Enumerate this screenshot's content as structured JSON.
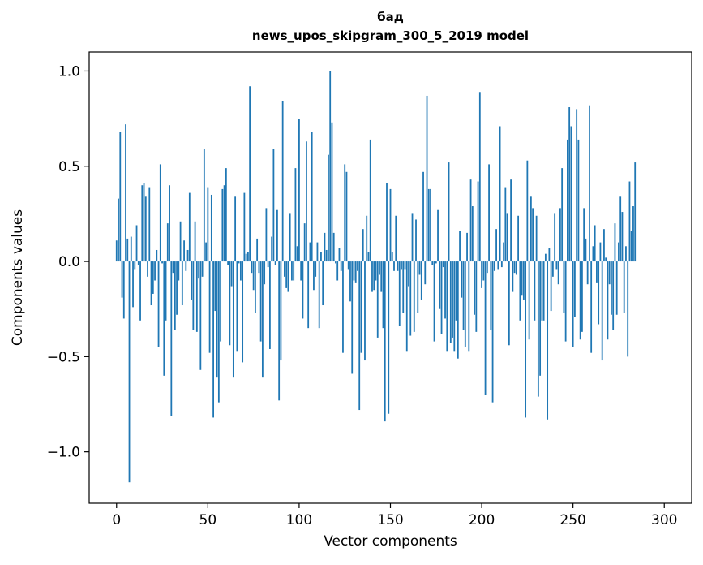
{
  "chart_data": {
    "type": "bar",
    "title": "бад",
    "subtitle": "news_upos_skipgram_300_5_2019 model",
    "xlabel": "Vector components",
    "ylabel": "Components values",
    "xlim": [
      -15,
      315
    ],
    "ylim": [
      -1.27,
      1.1
    ],
    "xticks": [
      0,
      50,
      100,
      150,
      200,
      250,
      300
    ],
    "yticks": [
      1.0,
      0.5,
      0.0,
      -0.5,
      -1.0
    ],
    "ytick_labels": [
      "1.0",
      "0.5",
      "0.0",
      "−0.5",
      "−1.0"
    ],
    "bar_color": "#1f77b4",
    "grid": false,
    "values": [
      0.11,
      0.33,
      0.68,
      -0.19,
      -0.3,
      0.72,
      0.12,
      -1.16,
      0.13,
      -0.24,
      -0.04,
      0.19,
      -0.02,
      -0.31,
      0.4,
      0.41,
      0.34,
      -0.08,
      0.39,
      -0.23,
      -0.17,
      -0.1,
      0.06,
      -0.45,
      0.51,
      -0.01,
      -0.6,
      -0.31,
      0.2,
      0.4,
      -0.81,
      -0.06,
      -0.36,
      -0.28,
      -0.1,
      0.21,
      -0.23,
      0.11,
      -0.05,
      0.06,
      0.36,
      -0.2,
      -0.36,
      0.21,
      -0.37,
      -0.09,
      -0.57,
      -0.08,
      0.59,
      0.1,
      0.39,
      -0.48,
      0.35,
      -0.82,
      -0.26,
      -0.61,
      -0.74,
      -0.42,
      0.38,
      0.4,
      0.49,
      -0.02,
      -0.44,
      -0.13,
      -0.61,
      0.34,
      -0.47,
      -0.01,
      -0.1,
      -0.53,
      0.36,
      0.04,
      0.05,
      0.92,
      -0.06,
      -0.15,
      -0.27,
      0.12,
      -0.06,
      -0.42,
      -0.61,
      -0.12,
      0.28,
      -0.03,
      -0.46,
      0.13,
      0.59,
      -0.02,
      0.27,
      -0.73,
      -0.52,
      0.84,
      -0.08,
      -0.14,
      -0.16,
      0.25,
      -0.1,
      -0.1,
      0.49,
      0.08,
      0.75,
      -0.1,
      -0.3,
      0.2,
      0.63,
      -0.35,
      0.1,
      0.68,
      -0.15,
      -0.08,
      0.1,
      -0.35,
      0.05,
      -0.23,
      0.15,
      0.06,
      0.56,
      1.0,
      0.73,
      0.15,
      -0.01,
      -0.1,
      0.07,
      -0.05,
      -0.48,
      0.51,
      0.47,
      -0.04,
      -0.21,
      -0.59,
      -0.1,
      -0.11,
      -0.05,
      -0.78,
      -0.48,
      0.17,
      -0.52,
      0.24,
      0.05,
      0.64,
      -0.16,
      -0.15,
      -0.1,
      -0.4,
      -0.07,
      -0.16,
      -0.35,
      -0.84,
      0.41,
      -0.8,
      0.38,
      0.05,
      -0.05,
      0.24,
      -0.05,
      -0.34,
      -0.04,
      -0.27,
      -0.04,
      -0.47,
      -0.13,
      -0.39,
      0.25,
      -0.37,
      0.22,
      -0.27,
      -0.07,
      -0.2,
      0.47,
      -0.12,
      0.87,
      0.38,
      0.38,
      -0.02,
      -0.42,
      -0.01,
      0.27,
      -0.25,
      -0.38,
      -0.03,
      -0.3,
      -0.47,
      0.52,
      -0.43,
      -0.4,
      -0.47,
      -0.31,
      -0.51,
      0.16,
      -0.19,
      -0.36,
      -0.45,
      0.15,
      -0.47,
      0.43,
      0.29,
      -0.28,
      -0.37,
      0.42,
      0.89,
      -0.14,
      -0.1,
      -0.7,
      -0.06,
      0.51,
      -0.36,
      -0.74,
      -0.05,
      0.17,
      -0.04,
      0.71,
      -0.03,
      0.1,
      0.39,
      0.25,
      -0.44,
      0.43,
      -0.16,
      -0.06,
      -0.07,
      0.24,
      -0.31,
      -0.18,
      -0.2,
      -0.82,
      0.53,
      -0.41,
      0.34,
      0.28,
      -0.31,
      0.24,
      -0.71,
      -0.6,
      -0.31,
      -0.31,
      0.04,
      -0.83,
      0.07,
      -0.26,
      -0.08,
      0.25,
      -0.04,
      -0.12,
      0.28,
      0.49,
      -0.27,
      -0.42,
      0.64,
      0.81,
      0.71,
      -0.45,
      -0.29,
      0.8,
      0.64,
      -0.41,
      -0.37,
      0.28,
      0.12,
      -0.12,
      0.82,
      -0.48,
      0.08,
      0.19,
      -0.11,
      -0.33,
      0.1,
      -0.52,
      0.17,
      0.02,
      -0.41,
      -0.12,
      -0.28,
      -0.36,
      0.2,
      -0.28,
      0.1,
      0.34,
      0.26,
      -0.27,
      0.08,
      -0.5,
      0.42,
      0.16,
      0.29,
      0.52
    ]
  }
}
